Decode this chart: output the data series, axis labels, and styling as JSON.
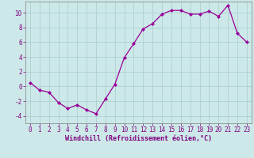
{
  "x": [
    0,
    1,
    2,
    3,
    4,
    5,
    6,
    7,
    8,
    9,
    10,
    11,
    12,
    13,
    14,
    15,
    16,
    17,
    18,
    19,
    20,
    21,
    22,
    23
  ],
  "y": [
    0.5,
    -0.5,
    -0.8,
    -2.2,
    -3.0,
    -2.5,
    -3.2,
    -3.7,
    -1.7,
    0.3,
    3.9,
    5.8,
    7.8,
    8.5,
    9.8,
    10.3,
    10.3,
    9.8,
    9.8,
    10.2,
    9.5,
    11.0,
    7.2,
    6.0
  ],
  "line_color": "#990099",
  "marker": "D",
  "marker_size": 2.0,
  "bg_color": "#cce8e8",
  "grid_color": "#aacccc",
  "xlabel": "Windchill (Refroidissement éolien,°C)",
  "xlabel_color": "#800080",
  "tick_color": "#800080",
  "label_color": "#800080",
  "ylim": [
    -5,
    11.5
  ],
  "xlim": [
    -0.5,
    23.5
  ],
  "yticks": [
    -4,
    -2,
    0,
    2,
    4,
    6,
    8,
    10
  ],
  "xticks": [
    0,
    1,
    2,
    3,
    4,
    5,
    6,
    7,
    8,
    9,
    10,
    11,
    12,
    13,
    14,
    15,
    16,
    17,
    18,
    19,
    20,
    21,
    22,
    23
  ],
  "tick_fontsize": 5.5,
  "xlabel_fontsize": 6.0,
  "spine_color": "#808080"
}
